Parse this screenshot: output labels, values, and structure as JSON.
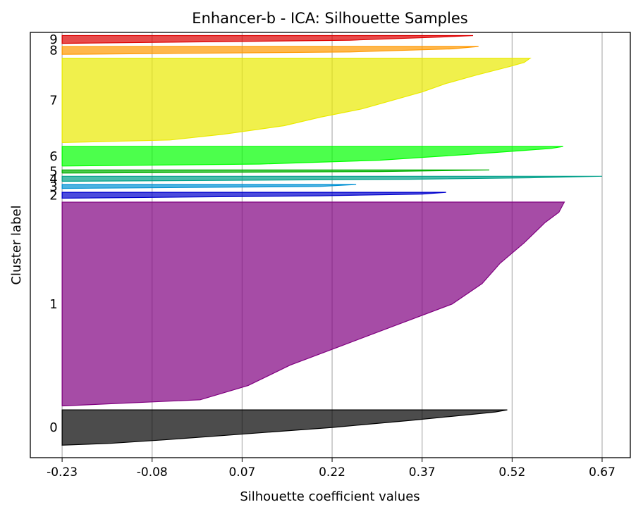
{
  "chart_data": {
    "type": "area",
    "title": "Enhancer-b - ICA: Silhouette Samples",
    "xlabel": "Silhouette coefficient values",
    "ylabel": "Cluster label",
    "x_ticks": [
      "-0.23",
      "-0.08",
      "0.07",
      "0.22",
      "0.37",
      "0.52",
      "0.67"
    ],
    "x_tick_values": [
      -0.23,
      -0.08,
      0.07,
      0.22,
      0.37,
      0.52,
      0.67
    ],
    "xlim": [
      -0.283,
      0.717
    ],
    "grid": "vertical",
    "ylim": [
      0,
      1030
    ],
    "clusters": [
      {
        "label": "0",
        "color": "#000000",
        "y_start": 10,
        "y_end": 100,
        "profile": [
          [
            0,
            0.512
          ],
          [
            0.06,
            0.492
          ],
          [
            0.15,
            0.44
          ],
          [
            0.3,
            0.35
          ],
          [
            0.5,
            0.22
          ],
          [
            0.7,
            0.06
          ],
          [
            0.85,
            -0.06
          ],
          [
            0.95,
            -0.15
          ],
          [
            1,
            -0.23
          ]
        ]
      },
      {
        "label": "1",
        "color": "#800080",
        "y_start": 110,
        "y_end": 630,
        "profile": [
          [
            0,
            0.607
          ],
          [
            0.05,
            0.598
          ],
          [
            0.1,
            0.575
          ],
          [
            0.2,
            0.54
          ],
          [
            0.3,
            0.5
          ],
          [
            0.4,
            0.47
          ],
          [
            0.5,
            0.42
          ],
          [
            0.6,
            0.33
          ],
          [
            0.7,
            0.24
          ],
          [
            0.8,
            0.15
          ],
          [
            0.9,
            0.08
          ],
          [
            0.97,
            0.0
          ],
          [
            1,
            -0.23
          ]
        ]
      },
      {
        "label": "2",
        "color": "#0000cd",
        "y_start": 640,
        "y_end": 655,
        "profile": [
          [
            0,
            0.41
          ],
          [
            0.3,
            0.37
          ],
          [
            0.6,
            0.2
          ],
          [
            1,
            -0.23
          ]
        ]
      },
      {
        "label": "3",
        "color": "#0091d4",
        "y_start": 665,
        "y_end": 675,
        "profile": [
          [
            0,
            0.26
          ],
          [
            0.5,
            0.2
          ],
          [
            1,
            -0.23
          ]
        ]
      },
      {
        "label": "4",
        "color": "#00a08a",
        "y_start": 683,
        "y_end": 696,
        "profile": [
          [
            0,
            0.67
          ],
          [
            0.3,
            0.55
          ],
          [
            0.6,
            0.35
          ],
          [
            1,
            -0.23
          ]
        ]
      },
      {
        "label": "5",
        "color": "#00b000",
        "y_start": 704,
        "y_end": 712,
        "profile": [
          [
            0,
            0.482
          ],
          [
            0.5,
            0.3
          ],
          [
            1,
            -0.23
          ]
        ]
      },
      {
        "label": "6",
        "color": "#00ff00",
        "y_start": 722,
        "y_end": 772,
        "profile": [
          [
            0,
            0.605
          ],
          [
            0.1,
            0.585
          ],
          [
            0.2,
            0.54
          ],
          [
            0.4,
            0.45
          ],
          [
            0.7,
            0.3
          ],
          [
            0.9,
            0.1
          ],
          [
            1,
            -0.23
          ]
        ]
      },
      {
        "label": "7",
        "color": "#eaea00",
        "y_start": 782,
        "y_end": 997,
        "profile": [
          [
            0,
            0.55
          ],
          [
            0.05,
            0.54
          ],
          [
            0.1,
            0.515
          ],
          [
            0.2,
            0.46
          ],
          [
            0.3,
            0.41
          ],
          [
            0.4,
            0.37
          ],
          [
            0.5,
            0.32
          ],
          [
            0.6,
            0.27
          ],
          [
            0.7,
            0.2
          ],
          [
            0.8,
            0.14
          ],
          [
            0.9,
            0.04
          ],
          [
            0.97,
            -0.05
          ],
          [
            1,
            -0.23
          ]
        ]
      },
      {
        "label": "8",
        "color": "#ff9900",
        "y_start": 1007,
        "y_end": 1027,
        "profile": [
          [
            0,
            0.464
          ],
          [
            0.3,
            0.42
          ],
          [
            0.7,
            0.25
          ],
          [
            1,
            -0.23
          ]
        ]
      },
      {
        "label": "9",
        "color": "#dd0000",
        "y_start": 1035,
        "y_end": 1055,
        "profile": [
          [
            0,
            0.455
          ],
          [
            0.2,
            0.4
          ],
          [
            0.6,
            0.25
          ],
          [
            1,
            -0.23
          ]
        ]
      }
    ]
  }
}
